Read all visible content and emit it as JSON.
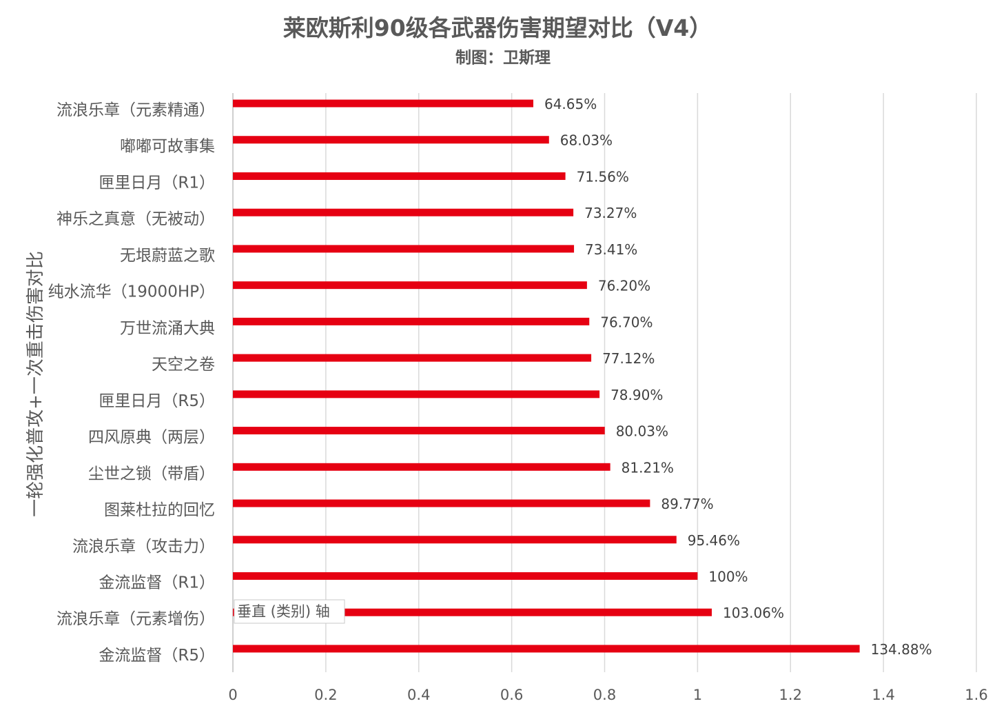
{
  "chart_data": {
    "type": "bar",
    "orientation": "horizontal",
    "title": "莱欧斯利90级各武器伤害期望对比（V4）",
    "subtitle": "制图：卫斯理",
    "ylabel": "一轮强化普攻+一次重击伤害对比",
    "xlabel": "",
    "xlim": [
      0,
      1.6
    ],
    "x_ticks": [
      "0",
      "0.2",
      "0.4",
      "0.6",
      "0.8",
      "1",
      "1.2",
      "1.4",
      "1.6"
    ],
    "x_tick_values": [
      0,
      0.2,
      0.4,
      0.6,
      0.8,
      1.0,
      1.2,
      1.4,
      1.6
    ],
    "grid": "vertical",
    "bar_color": "#e60012",
    "categories": [
      "流浪乐章（元素精通）",
      "嘟嘟可故事集",
      "匣里日月（R1）",
      "神乐之真意（无被动）",
      "无垠蔚蓝之歌",
      "纯水流华（19000HP）",
      "万世流涌大典",
      "天空之卷",
      "匣里日月（R5）",
      "四风原典（两层）",
      "尘世之锁（带盾）",
      "图莱杜拉的回忆",
      "流浪乐章（攻击力）",
      "金流监督（R1）",
      "流浪乐章（元素增伤）",
      "金流监督（R5）"
    ],
    "values": [
      0.6465,
      0.6803,
      0.7156,
      0.7327,
      0.7341,
      0.762,
      0.767,
      0.7712,
      0.789,
      0.8003,
      0.8121,
      0.8977,
      0.9546,
      1.0,
      1.0306,
      1.3488
    ],
    "data_labels": [
      "64.65%",
      "68.03%",
      "71.56%",
      "73.27%",
      "73.41%",
      "76.20%",
      "76.70%",
      "77.12%",
      "78.90%",
      "80.03%",
      "81.21%",
      "89.77%",
      "95.46%",
      "100%",
      "103.06%",
      "134.88%"
    ]
  },
  "tooltip": {
    "text": "垂直 (类别) 轴"
  }
}
